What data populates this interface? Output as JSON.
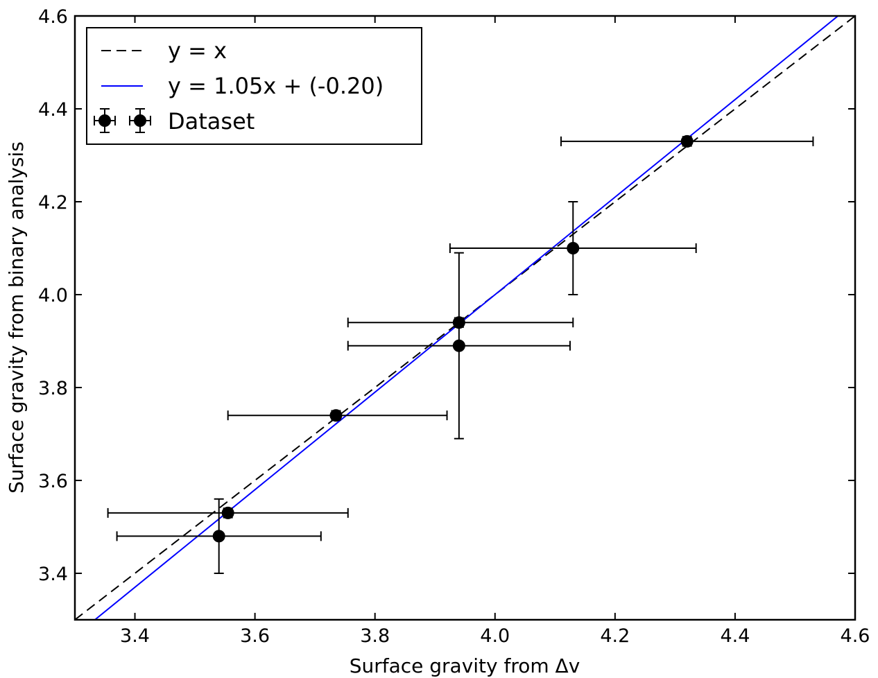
{
  "chart_data": {
    "type": "scatter",
    "xlabel": "Surface gravity from Δv",
    "ylabel": "Surface gravity from binary analysis",
    "xlim": [
      3.3,
      4.6
    ],
    "ylim": [
      3.3,
      4.6
    ],
    "xticks": [
      "3.4",
      "3.6",
      "3.8",
      "4.0",
      "4.2",
      "4.4",
      "4.6"
    ],
    "yticks": [
      "3.4",
      "3.6",
      "3.8",
      "4.0",
      "4.2",
      "4.4",
      "4.6"
    ],
    "grid": false,
    "legend_position": "top-left",
    "series": [
      {
        "name": "Dataset",
        "kind": "errorbar",
        "color": "#000000",
        "points": [
          {
            "x": 3.54,
            "y": 3.48,
            "xerr_lo": 3.37,
            "xerr_hi": 3.71,
            "yerr_lo": 3.4,
            "yerr_hi": 3.56
          },
          {
            "x": 3.555,
            "y": 3.53,
            "xerr_lo": 3.355,
            "xerr_hi": 3.755,
            "yerr_lo": 3.52,
            "yerr_hi": 3.54
          },
          {
            "x": 3.735,
            "y": 3.74,
            "xerr_lo": 3.555,
            "xerr_hi": 3.92,
            "yerr_lo": 3.73,
            "yerr_hi": 3.75
          },
          {
            "x": 3.94,
            "y": 3.89,
            "xerr_lo": 3.755,
            "xerr_hi": 4.125,
            "yerr_lo": 3.69,
            "yerr_hi": 4.09
          },
          {
            "x": 3.94,
            "y": 3.94,
            "xerr_lo": 3.755,
            "xerr_hi": 4.13,
            "yerr_lo": 3.93,
            "yerr_hi": 3.95
          },
          {
            "x": 4.13,
            "y": 4.1,
            "xerr_lo": 3.925,
            "xerr_hi": 4.335,
            "yerr_lo": 4.0,
            "yerr_hi": 4.2
          },
          {
            "x": 4.32,
            "y": 4.33,
            "xerr_lo": 4.11,
            "xerr_hi": 4.53,
            "yerr_lo": 4.32,
            "yerr_hi": 4.34
          }
        ]
      },
      {
        "name": "y = x",
        "kind": "line",
        "style": "dashed",
        "color": "#000000",
        "slope": 1.0,
        "intercept": 0.0
      },
      {
        "name": "y = 1.05x + (-0.20)",
        "kind": "line",
        "style": "solid",
        "color": "#0000ff",
        "slope": 1.05,
        "intercept": -0.2
      }
    ],
    "legend": [
      {
        "label": "y = x",
        "style": "dashed",
        "color": "#000000"
      },
      {
        "label": "y = 1.05x + (-0.20)",
        "style": "solid",
        "color": "#0000ff"
      },
      {
        "label": "Dataset",
        "style": "errorbar",
        "color": "#000000"
      }
    ]
  }
}
